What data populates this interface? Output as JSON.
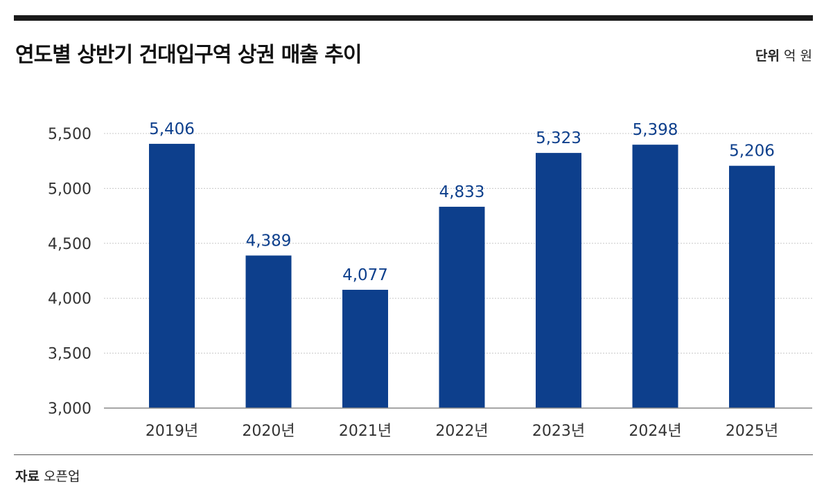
{
  "header": {
    "title": "연도별 상반기 건대입구역 상권 매출 추이",
    "unit_label": "단위",
    "unit_value": "억 원"
  },
  "footer": {
    "source_label": "자료",
    "source_value": "오픈업"
  },
  "colors": {
    "bar": "#0d3f8c",
    "value_label": "#0d3f8c",
    "grid": "#c8c8c8",
    "axis": "#888888",
    "tick_text": "#333333"
  },
  "chart_data": {
    "type": "bar",
    "title": "연도별 상반기 건대입구역 상권 매출 추이",
    "unit": "억 원",
    "categories": [
      "2019년",
      "2020년",
      "2021년",
      "2022년",
      "2023년",
      "2024년",
      "2025년"
    ],
    "values": [
      5406,
      4389,
      4077,
      4833,
      5323,
      5398,
      5206
    ],
    "value_labels": [
      "5,406",
      "4,389",
      "4,077",
      "4,833",
      "5,323",
      "5,398",
      "5,206"
    ],
    "ylim": [
      3000,
      5500
    ],
    "yticks": [
      3000,
      3500,
      4000,
      4500,
      5000,
      5500
    ],
    "ytick_labels": [
      "3,000",
      "3,500",
      "4,000",
      "4,500",
      "5,000",
      "5,500"
    ],
    "grid": true,
    "legend": "none"
  }
}
